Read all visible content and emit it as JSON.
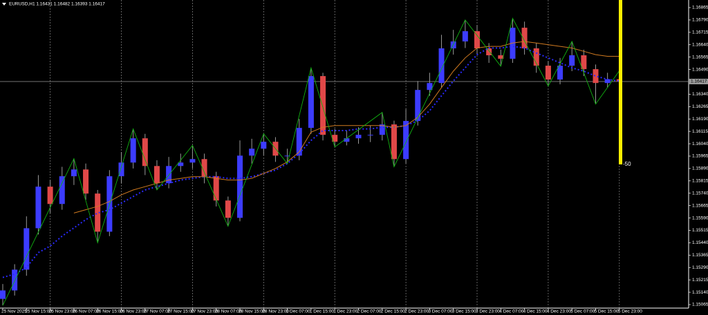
{
  "chart_data": {
    "type": "candlestick",
    "title": "EURUSD,H1 1.16431 1.16482 1.16393 1.16417",
    "categories": [
      "25 Nov 2025",
      null,
      "25 Nov 15:00",
      null,
      "25 Nov 23:00",
      null,
      "26 Nov 07:00",
      null,
      "26 Nov 15:00",
      null,
      "26 Nov 23:00",
      null,
      "27 Nov 07:00",
      null,
      "27 Nov 15:00",
      null,
      "27 Nov 23:00",
      null,
      "28 Nov 07:00",
      null,
      "28 Nov 15:00",
      null,
      "28 Nov 23:00",
      null,
      "1 Dec 07:00",
      null,
      "1 Dec 15:00",
      null,
      "1 Dec 23:00",
      null,
      "2 Dec 07:00",
      null,
      "2 Dec 15:00",
      null,
      "2 Dec 23:00",
      null,
      "3 Dec 07:00",
      null,
      "3 Dec 15:00",
      null,
      "3 Dec 23:00",
      null,
      "4 Dec 07:00",
      null,
      "4 Dec 15:00",
      null,
      "4 Dec 23:00",
      null,
      "5 Dec 07:00",
      null,
      "5 Dec 15:00",
      null,
      "5 Dec 23:00"
    ],
    "open": [
      1.151,
      1.15151,
      1.15277,
      1.15528,
      1.1578,
      1.15675,
      1.15843,
      1.15884,
      1.15738,
      1.15507,
      1.15843,
      1.15926,
      1.16073,
      1.15905,
      1.15801,
      1.15905,
      1.15926,
      1.15947,
      1.15843,
      1.15696,
      1.15591,
      1.15968,
      1.1601,
      1.16052,
      1.15968,
      1.15968,
      1.16136,
      1.1645,
      1.16094,
      1.16052,
      1.16073,
      1.16094,
      1.16094,
      1.16157,
      1.15947,
      1.16178,
      1.16366,
      1.16408,
      1.16618,
      1.1666,
      1.16722,
      1.16618,
      1.16576,
      1.16555,
      1.16743,
      1.16618,
      1.16513,
      1.16429,
      1.16513,
      1.16576,
      1.16492,
      1.16408,
      1.16431
    ],
    "high": [
      1.1519,
      1.1531,
      1.156,
      1.1585,
      1.1582,
      1.159,
      1.1595,
      1.1592,
      1.1576,
      1.1588,
      1.1599,
      1.1613,
      1.161,
      1.1594,
      1.1596,
      1.1598,
      1.1603,
      1.1598,
      1.1587,
      1.1572,
      1.1606,
      1.1607,
      1.161,
      1.1608,
      1.1601,
      1.1619,
      1.165,
      1.1647,
      1.1613,
      1.1612,
      1.1614,
      1.1615,
      1.1623,
      1.1618,
      1.1625,
      1.1642,
      1.1647,
      1.167,
      1.1673,
      1.1679,
      1.1676,
      1.1665,
      1.1661,
      1.168,
      1.1678,
      1.1665,
      1.1654,
      1.1656,
      1.1666,
      1.1661,
      1.1652,
      1.1647,
      1.16482
    ],
    "low": [
      1.1506,
      1.1512,
      1.1524,
      1.1549,
      1.1562,
      1.1564,
      1.1579,
      1.157,
      1.1544,
      1.1548,
      1.158,
      1.1589,
      1.1585,
      1.1576,
      1.1577,
      1.1587,
      1.1589,
      1.158,
      1.1566,
      1.1554,
      1.1557,
      1.1592,
      1.1597,
      1.1593,
      1.1592,
      1.1594,
      1.161,
      1.1606,
      1.1602,
      1.1603,
      1.1604,
      1.1605,
      1.1606,
      1.159,
      1.1592,
      1.1615,
      1.1633,
      1.1638,
      1.1658,
      1.1662,
      1.1658,
      1.1653,
      1.1651,
      1.1653,
      1.1658,
      1.1647,
      1.1639,
      1.164,
      1.1648,
      1.1645,
      1.1628,
      1.1638,
      1.16393
    ],
    "close": [
      1.15151,
      1.15277,
      1.15528,
      1.1578,
      1.15675,
      1.15843,
      1.15884,
      1.15738,
      1.15507,
      1.15843,
      1.15926,
      1.16073,
      1.15905,
      1.15801,
      1.15905,
      1.15926,
      1.15947,
      1.15843,
      1.15696,
      1.15591,
      1.15968,
      1.1601,
      1.16052,
      1.15968,
      1.15968,
      1.16136,
      1.1645,
      1.16094,
      1.16052,
      1.16073,
      1.16094,
      1.16094,
      1.16157,
      1.15947,
      1.16178,
      1.16366,
      1.16408,
      1.16618,
      1.1666,
      1.16722,
      1.16618,
      1.16576,
      1.16555,
      1.16743,
      1.16618,
      1.16513,
      1.16429,
      1.16513,
      1.16576,
      1.16492,
      1.16408,
      1.16431,
      1.16417
    ],
    "up_color": "#3c3cff",
    "down_color": "#e04848",
    "wick_color": "#9a9a9a",
    "lines": [
      {
        "color": "#2a2aff",
        "dotted": true,
        "values": [
          1.1523,
          1.1525,
          1.1529,
          1.1538,
          1.1542,
          1.1548,
          1.1553,
          1.1558,
          1.1562,
          1.1564,
          1.1568,
          1.1572,
          1.1576,
          1.1578,
          1.158,
          1.1582,
          1.1583,
          1.1584,
          1.1584,
          1.1583,
          1.1583,
          1.1584,
          1.1586,
          1.1588,
          1.1592,
          1.1598,
          1.1606,
          1.1612,
          1.1612,
          1.1612,
          1.1613,
          1.1613,
          1.1614,
          1.1614,
          1.1615,
          1.1618,
          1.1624,
          1.1633,
          1.1642,
          1.165,
          1.1658,
          1.1662,
          1.1662,
          1.1663,
          1.1662,
          1.1659,
          1.1656,
          1.1653,
          1.165,
          1.1648,
          1.1645,
          1.1643,
          1.1642
        ]
      },
      {
        "color": "#d07a20",
        "dotted": false,
        "values": [
          null,
          null,
          null,
          null,
          null,
          null,
          1.1562,
          1.1564,
          1.1566,
          1.1569,
          1.1573,
          1.1576,
          1.1578,
          1.158,
          1.1582,
          1.1583,
          1.1584,
          1.1584,
          1.1583,
          1.1582,
          1.1582,
          1.1583,
          1.1586,
          1.1589,
          1.1593,
          1.1599,
          1.1611,
          1.1614,
          1.1615,
          1.1615,
          1.1615,
          1.1615,
          1.1615,
          1.1614,
          1.1615,
          1.162,
          1.1628,
          1.1638,
          1.1648,
          1.1656,
          1.1662,
          1.1663,
          1.1663,
          1.1665,
          1.1666,
          1.1665,
          1.1664,
          1.1663,
          1.1662,
          1.166,
          1.1658,
          1.1657,
          1.1657
        ]
      }
    ],
    "zigzag": {
      "color": "#10b010",
      "x": [
        0,
        6,
        8,
        11,
        13,
        16,
        19,
        22,
        24,
        26,
        28,
        32,
        33,
        39,
        42,
        43,
        46,
        48,
        50,
        52
      ],
      "values": [
        1.1506,
        1.1595,
        1.1544,
        1.1613,
        1.1576,
        1.1603,
        1.1554,
        1.161,
        1.1592,
        1.165,
        1.1602,
        1.1623,
        1.159,
        1.1679,
        1.1651,
        1.168,
        1.1639,
        1.1666,
        1.1628,
        1.16482
      ]
    },
    "ylim": [
      1.15044,
      1.16911
    ],
    "yticks": [
      1.16865,
      {
        "value": 1.1679,
        "label": "1.16790"
      },
      1.16715,
      {
        "value": 1.1664,
        "label": "1.16640"
      },
      1.16565,
      {
        "value": 1.1649,
        "label": "1.16490"
      },
      {
        "value": 1.1634,
        "label": "1.16340"
      },
      1.16265,
      {
        "value": 1.1619,
        "label": "1.16190"
      },
      1.16115,
      {
        "value": 1.1604,
        "label": "1.16040"
      },
      1.15965,
      {
        "value": 1.1589,
        "label": "1.15890"
      },
      1.15815,
      {
        "value": 1.1574,
        "label": "1.15740"
      },
      1.15665,
      {
        "value": 1.1559,
        "label": "1.15590"
      },
      1.15515,
      {
        "value": 1.1544,
        "label": "1.15440"
      },
      1.15365,
      {
        "value": 1.1529,
        "label": "1.15290"
      },
      1.15215,
      {
        "value": 1.1514,
        "label": "1.15140"
      },
      1.15065
    ],
    "current_price": 1.16417,
    "indicator": {
      "color": "#ffee00",
      "label": "-50"
    },
    "grid": true
  }
}
